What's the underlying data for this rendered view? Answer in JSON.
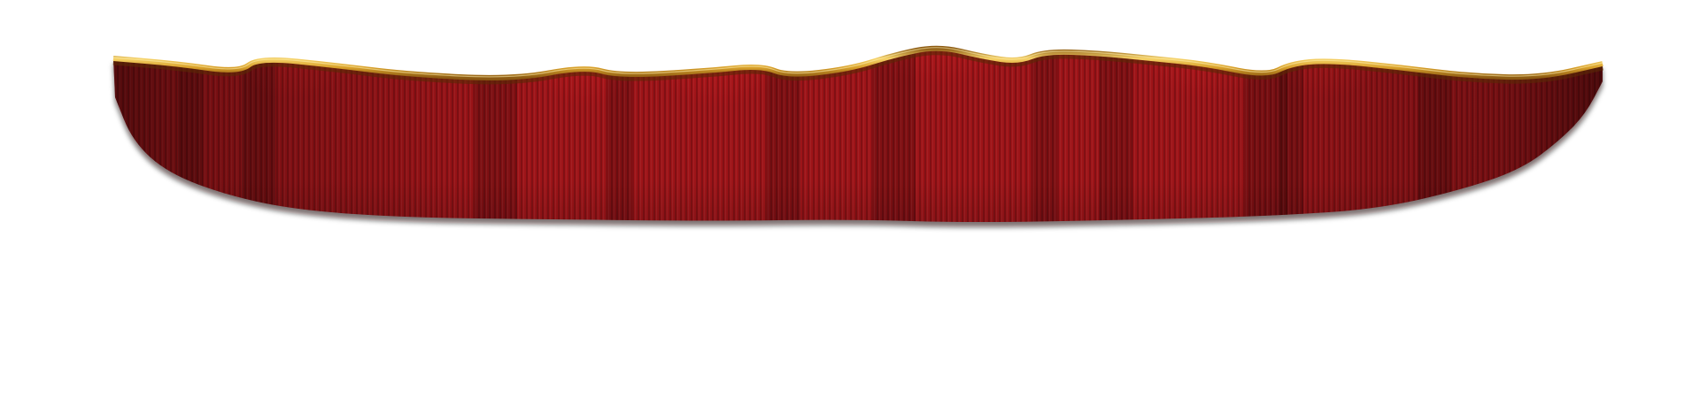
{
  "scene": {
    "subject": "theater-curtain-valance",
    "background_color": "#ffffff"
  },
  "colors": {
    "velvet_bright": "#d11a1f",
    "velvet_mid": "#9e1418",
    "velvet_dark": "#5c0d10",
    "velvet_shadow": "#2a0a0b",
    "gold_light": "#f6d36a",
    "gold_mid": "#d9a12b",
    "gold_dark": "#8c5a12"
  }
}
